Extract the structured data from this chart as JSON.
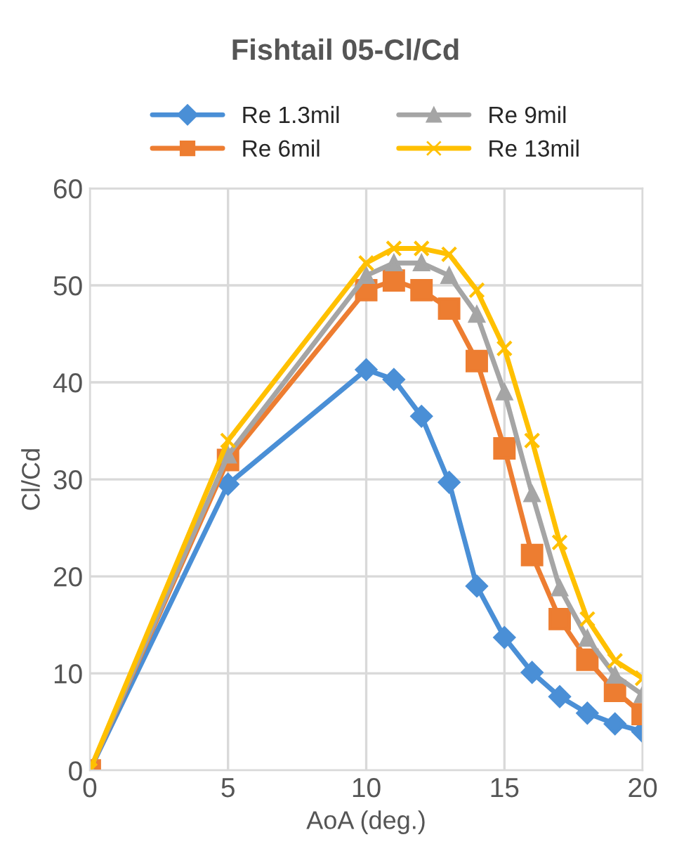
{
  "chart_data": {
    "type": "line",
    "title": "Fishtail 05-Cl/Cd",
    "xlabel": "AoA (deg.)",
    "ylabel": "Cl/Cd",
    "x": [
      0,
      5,
      10,
      11,
      12,
      13,
      14,
      15,
      16,
      17,
      18,
      19,
      20
    ],
    "series": [
      {
        "name": "Re 1.3mil",
        "color": "#4a8fd6",
        "marker": "diamond",
        "values": [
          0,
          29.5,
          41.3,
          40.3,
          36.5,
          29.7,
          19,
          13.7,
          10.1,
          7.6,
          5.9,
          4.8,
          4
        ]
      },
      {
        "name": "Re 6mil",
        "color": "#ed7d31",
        "marker": "square",
        "values": [
          0,
          32,
          49.5,
          50.5,
          49.5,
          47.6,
          42.2,
          33.2,
          22.2,
          15.6,
          11.4,
          8.2,
          5.8
        ]
      },
      {
        "name": "Re 9mil",
        "color": "#a5a5a5",
        "marker": "triangle",
        "values": [
          0,
          32.5,
          51,
          52.3,
          52.3,
          51,
          47,
          39,
          28.5,
          18.8,
          13.6,
          9.8,
          7.8
        ]
      },
      {
        "name": "Re 13mil",
        "color": "#ffc000",
        "marker": "cross",
        "values": [
          0,
          34,
          52.3,
          53.8,
          53.8,
          53.2,
          49.5,
          43.5,
          34,
          23.5,
          15.6,
          11.3,
          9.5
        ]
      }
    ],
    "xlim": [
      0,
      20
    ],
    "xticks": [
      0,
      5,
      10,
      15,
      20
    ],
    "ylim": [
      0,
      60
    ],
    "yticks": [
      0,
      10,
      20,
      30,
      40,
      50,
      60
    ],
    "grid": true,
    "legend": "top",
    "line_style": "solid"
  }
}
